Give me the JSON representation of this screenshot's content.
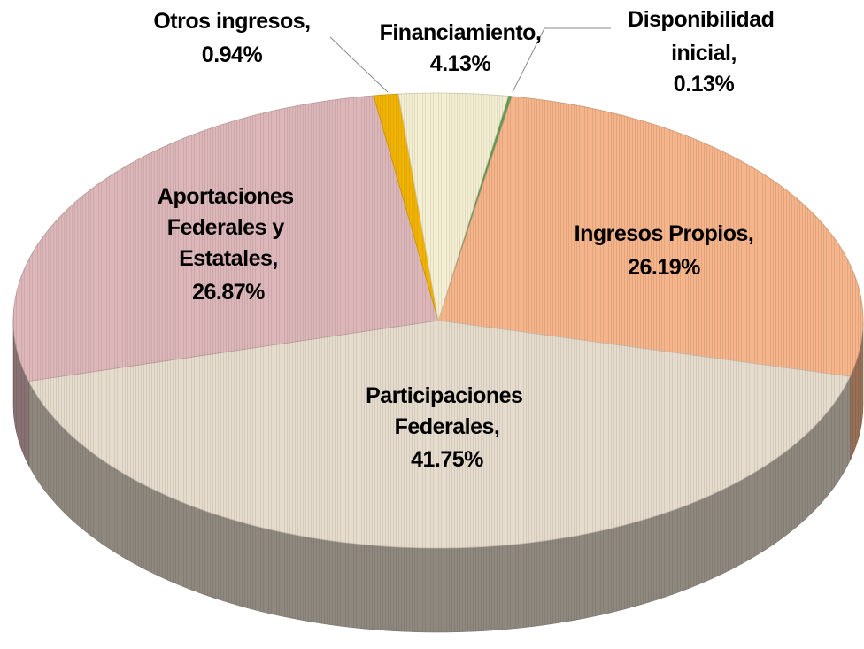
{
  "chart_data": {
    "type": "pie",
    "categories": [
      "Disponibilidad inicial,",
      "Ingresos Propios,",
      "Participaciones Federales,",
      "Aportaciones Federales y Estatales,",
      "Otros ingresos,",
      "Financiamiento,"
    ],
    "values": [
      0.13,
      26.19,
      41.75,
      26.87,
      0.94,
      4.13
    ],
    "value_labels": [
      "0.13%",
      "26.19%",
      "41.75%",
      "26.87%",
      "0.94%",
      "4.13%"
    ],
    "colors": [
      "#5f9e55",
      "#f5b48a",
      "#e6dccd",
      "#dcb6b8",
      "#f2b400",
      "#f4eed2"
    ],
    "three_d": true
  }
}
